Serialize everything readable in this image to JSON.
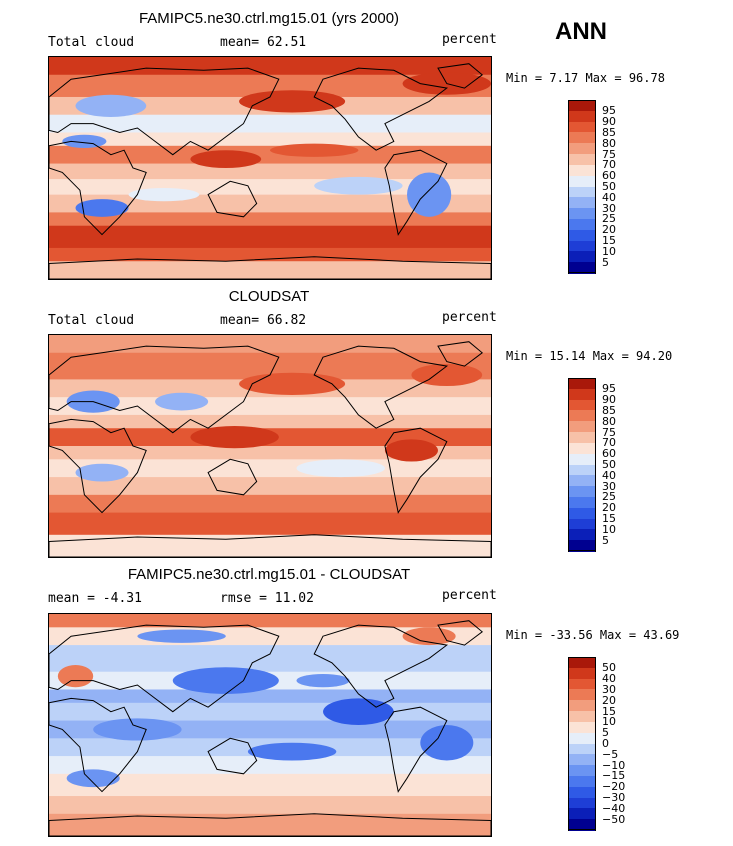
{
  "season": "ANN",
  "chart_data": [
    {
      "type": "heatmap",
      "title": "FAMIPC5.ne30.ctrl.mg15.01 (yrs 2000)",
      "left_label": "Total cloud",
      "center_label": "mean=  62.51",
      "right_label": "percent",
      "mean": 62.51,
      "min": 7.17,
      "max": 96.78,
      "minmax_text": "Min =    7.17 Max =   96.78",
      "units": "percent",
      "levels": [
        5,
        10,
        15,
        20,
        25,
        30,
        40,
        50,
        60,
        70,
        75,
        80,
        85,
        90,
        95
      ],
      "level_labels": [
        "95",
        "90",
        "85",
        "80",
        "75",
        "70",
        "60",
        "50",
        "40",
        "30",
        "25",
        "20",
        "15",
        "10",
        "5"
      ],
      "colors": [
        "#000090",
        "#0b1fb8",
        "#1e3ed6",
        "#2f5ae6",
        "#4b78ee",
        "#6b94f2",
        "#93b2f5",
        "#bcd2f8",
        "#e6eef9",
        "#fbe3d6",
        "#f7c1a8",
        "#f29d7d",
        "#ec7a55",
        "#e35733",
        "#d0381b",
        "#a9180a"
      ]
    },
    {
      "type": "heatmap",
      "title": "CLOUDSAT",
      "left_label": "Total cloud",
      "center_label": "mean=  66.82",
      "right_label": "percent",
      "mean": 66.82,
      "min": 15.14,
      "max": 94.2,
      "minmax_text": "Min =   15.14 Max =   94.20",
      "units": "percent",
      "levels": [
        5,
        10,
        15,
        20,
        25,
        30,
        40,
        50,
        60,
        70,
        75,
        80,
        85,
        90,
        95
      ],
      "level_labels": [
        "95",
        "90",
        "85",
        "80",
        "75",
        "70",
        "60",
        "50",
        "40",
        "30",
        "25",
        "20",
        "15",
        "10",
        "5"
      ],
      "colors": [
        "#000090",
        "#0b1fb8",
        "#1e3ed6",
        "#2f5ae6",
        "#4b78ee",
        "#6b94f2",
        "#93b2f5",
        "#bcd2f8",
        "#e6eef9",
        "#fbe3d6",
        "#f7c1a8",
        "#f29d7d",
        "#ec7a55",
        "#e35733",
        "#d0381b",
        "#a9180a"
      ]
    },
    {
      "type": "heatmap",
      "title": "FAMIPC5.ne30.ctrl.mg15.01 - CLOUDSAT",
      "left_label": "mean =   -4.31",
      "center_label": "rmse =   11.02",
      "right_label": "percent",
      "mean": -4.31,
      "rmse": 11.02,
      "min": -33.56,
      "max": 43.69,
      "minmax_text": "Min = -33.56 Max =   43.69",
      "units": "percent",
      "levels": [
        -50,
        -40,
        -30,
        -20,
        -15,
        -10,
        -5,
        0,
        5,
        10,
        15,
        20,
        30,
        40,
        50
      ],
      "level_labels": [
        "50",
        "40",
        "30",
        "20",
        "15",
        "10",
        "5",
        "0",
        "−5",
        "−10",
        "−15",
        "−20",
        "−30",
        "−40",
        "−50"
      ],
      "colors": [
        "#000090",
        "#0b1fb8",
        "#1e3ed6",
        "#2f5ae6",
        "#4b78ee",
        "#6b94f2",
        "#93b2f5",
        "#bcd2f8",
        "#e6eef9",
        "#fbe3d6",
        "#f7c1a8",
        "#f29d7d",
        "#ec7a55",
        "#e35733",
        "#d0381b",
        "#a9180a"
      ]
    }
  ]
}
